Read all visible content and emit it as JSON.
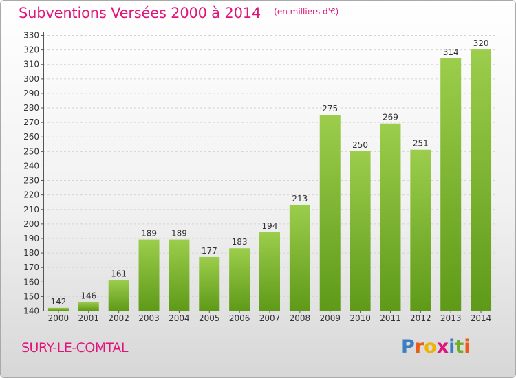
{
  "header": {
    "title": "Subventions Versées 2000 à 2014",
    "unit": "(en milliers d'€)"
  },
  "footer": {
    "commune": "SURY-LE-COMTAL",
    "logo_letters": [
      "P",
      "r",
      "o",
      "x",
      "i",
      "t",
      "i"
    ]
  },
  "colors": {
    "accent": "#e0147a",
    "bar_top": "#9ccd4c",
    "bar_bottom": "#5e9a18",
    "logo": [
      "#3a7fc4",
      "#e85d1a",
      "#f0b400",
      "#e0147a",
      "#3a7fc4",
      "#6aae2a",
      "#e85d1a"
    ]
  },
  "chart_data": {
    "type": "bar",
    "title": "Subventions Versées 2000 à 2014",
    "subtitle": "(en milliers d'€)",
    "categories": [
      "2000",
      "2001",
      "2002",
      "2003",
      "2004",
      "2005",
      "2006",
      "2007",
      "2008",
      "2009",
      "2010",
      "2011",
      "2012",
      "2013",
      "2014"
    ],
    "values": [
      142,
      146,
      161,
      189,
      189,
      177,
      183,
      194,
      213,
      275,
      250,
      269,
      251,
      314,
      320
    ],
    "ylim": [
      140,
      330
    ],
    "ytick_step": 10,
    "grid": true
  }
}
